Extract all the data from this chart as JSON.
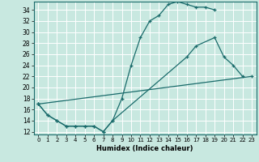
{
  "xlabel": "Humidex (Indice chaleur)",
  "bg_color": "#c8e8e0",
  "grid_color": "#b0d8ce",
  "line_color": "#1a6b6b",
  "xlim": [
    -0.5,
    23.5
  ],
  "ylim": [
    11.5,
    35.5
  ],
  "yticks": [
    12,
    14,
    16,
    18,
    20,
    22,
    24,
    26,
    28,
    30,
    32,
    34
  ],
  "xticks": [
    0,
    1,
    2,
    3,
    4,
    5,
    6,
    7,
    8,
    9,
    10,
    11,
    12,
    13,
    14,
    15,
    16,
    17,
    18,
    19,
    20,
    21,
    22,
    23
  ],
  "curve1_x": [
    0,
    1,
    2,
    3,
    4,
    5,
    6,
    7,
    8,
    9,
    10,
    11,
    12,
    13,
    14,
    15,
    16,
    17,
    18,
    19
  ],
  "curve1_y": [
    17,
    15,
    14,
    13,
    13,
    13,
    13,
    12,
    14,
    18,
    24,
    29,
    32,
    33,
    35,
    35.5,
    35,
    34.5,
    34.5,
    34
  ],
  "curve2_x": [
    0,
    1,
    2,
    3,
    4,
    5,
    6,
    7,
    8,
    16,
    17,
    19,
    20,
    21,
    22
  ],
  "curve2_y": [
    17,
    15,
    14,
    13,
    13,
    13,
    13,
    12,
    14,
    25.5,
    27.5,
    29,
    25.5,
    24,
    22
  ],
  "line3_x": [
    0,
    23
  ],
  "line3_y": [
    17,
    22
  ]
}
